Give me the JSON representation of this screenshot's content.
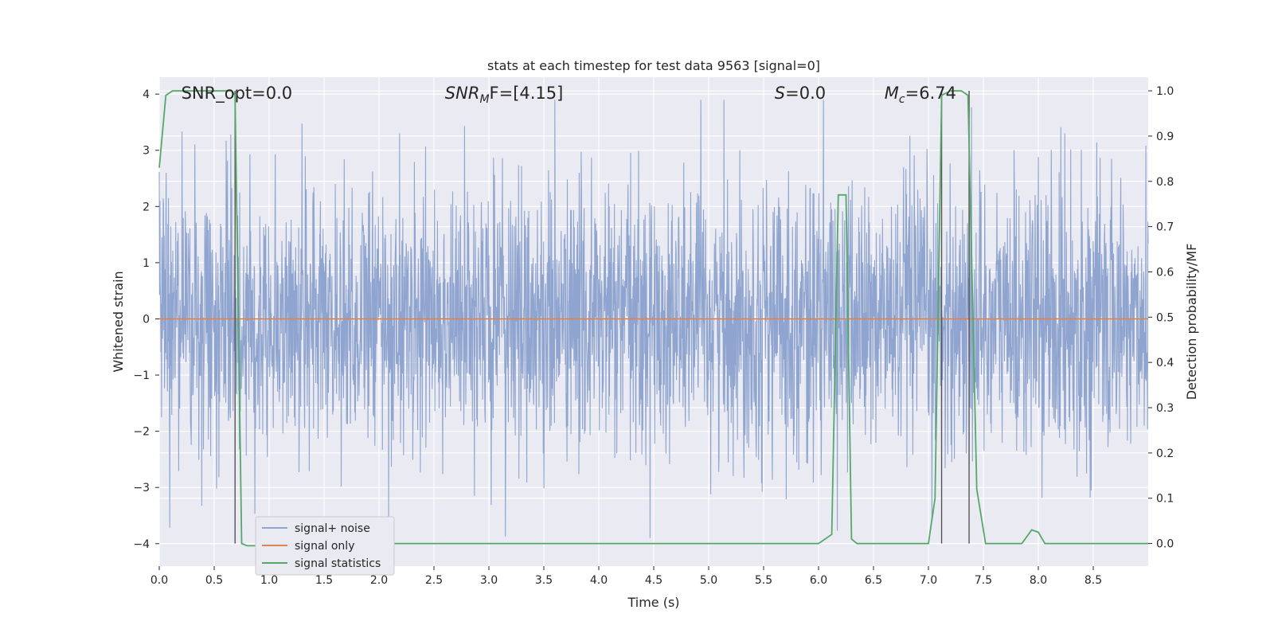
{
  "chart_data": {
    "type": "line",
    "title": "stats at each timestep for test data 9563 [signal=0]",
    "xlabel": "Time (s)",
    "ylabel": "Whitened strain",
    "ylabel_right": "Detection probability/MF",
    "xlim": [
      0.0,
      9.0
    ],
    "ylim": [
      -4.4,
      4.3
    ],
    "ylim_right": [
      -0.05,
      1.03
    ],
    "grid": true,
    "x_ticks": [
      "0.0",
      "0.5",
      "1.0",
      "1.5",
      "2.0",
      "2.5",
      "3.0",
      "3.5",
      "4.0",
      "4.5",
      "5.0",
      "5.5",
      "6.0",
      "6.5",
      "7.0",
      "7.5",
      "8.0",
      "8.5"
    ],
    "y_ticks": [
      "4",
      "3",
      "2",
      "1",
      "0",
      "−1",
      "−2",
      "−3",
      "−4"
    ],
    "y_ticks_right": [
      "1.0",
      "0.9",
      "0.8",
      "0.7",
      "0.6",
      "0.5",
      "0.4",
      "0.3",
      "0.2",
      "0.1",
      "0.0"
    ],
    "annotations": [
      {
        "text": "SNR_opt=0.0",
        "x": 0.2
      },
      {
        "text": "SNR",
        "sub": "M",
        "after": "F=[4.15]",
        "x": 2.6
      },
      {
        "text": "S",
        "sub": "",
        "after": "=0.0",
        "x": 5.6
      },
      {
        "text": "M",
        "sub": "c",
        "after": "=6.74",
        "x": 6.6
      }
    ],
    "legend": {
      "placement": "lower-left",
      "entries": [
        "signal+ noise",
        "signal only",
        "signal statistics"
      ]
    },
    "colors": {
      "noise": "#8fa5cf",
      "signal": "#dd8452",
      "statistics": "#55a868",
      "vline": "#555555",
      "background": "#eaeaf2"
    },
    "series": [
      {
        "name": "signal+ noise",
        "noise_envelope": {
          "typical_abs": 1.6,
          "max_peak": 3.9,
          "min_peak": -3.9
        }
      },
      {
        "name": "signal only",
        "y_axis": "left",
        "x": [
          0.0,
          9.0
        ],
        "y": [
          0.0,
          0.0
        ]
      },
      {
        "name": "signal statistics",
        "y_axis": "right",
        "x": [
          0.0,
          0.06,
          0.12,
          0.2,
          0.3,
          0.4,
          0.5,
          0.6,
          0.66,
          0.69,
          0.75,
          0.8,
          0.85,
          0.9,
          1.0,
          2.0,
          3.0,
          4.0,
          5.0,
          5.9,
          6.0,
          6.12,
          6.18,
          6.25,
          6.3,
          6.35,
          6.42,
          6.5,
          7.0,
          7.06,
          7.12,
          7.2,
          7.3,
          7.36,
          7.44,
          7.52,
          7.6,
          7.7,
          7.85,
          7.94,
          8.0,
          8.06,
          8.5,
          9.0
        ],
        "y": [
          0.83,
          0.99,
          1.0,
          1.0,
          1.0,
          1.0,
          1.0,
          1.0,
          1.0,
          0.99,
          0.0,
          -0.005,
          -0.005,
          -0.005,
          0.0,
          0.0,
          0.0,
          0.0,
          0.0,
          0.0,
          0.0,
          0.02,
          0.77,
          0.77,
          0.01,
          0.0,
          0.0,
          0.0,
          0.0,
          0.1,
          0.99,
          1.0,
          1.0,
          0.99,
          0.12,
          0.0,
          0.0,
          0.0,
          0.0,
          0.03,
          0.025,
          0.0,
          0.0,
          0.0
        ]
      }
    ],
    "vertical_lines_x": [
      0.69,
      7.12,
      7.37
    ]
  }
}
